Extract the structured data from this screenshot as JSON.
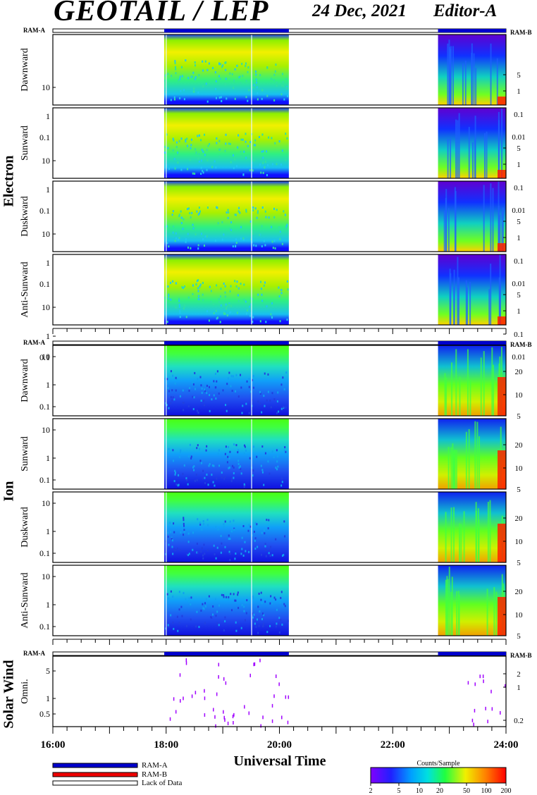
{
  "header": {
    "title": "GEOTAIL / LEP",
    "date": "24 Dec, 2021",
    "editor": "Editor-A"
  },
  "groups": [
    {
      "name": "Electron",
      "panels": [
        {
          "label": "Dawnward"
        },
        {
          "label": "Sunward"
        },
        {
          "label": "Duskward"
        },
        {
          "label": "Anti-Sunward"
        }
      ],
      "left_ticks": [
        "10",
        "1",
        "0.1"
      ],
      "right_ticks": [
        "5",
        "1",
        "0.1",
        "0.01"
      ]
    },
    {
      "name": "Ion",
      "panels": [
        {
          "label": "Dawnward"
        },
        {
          "label": "Sunward"
        },
        {
          "label": "Duskward"
        },
        {
          "label": "Anti-Sunward"
        }
      ],
      "left_ticks": [
        "10",
        "1",
        "0.1"
      ],
      "right_ticks": [
        "20",
        "10",
        "5"
      ]
    },
    {
      "name": "Solar Wind",
      "panels": [
        {
          "label": "Omni."
        }
      ],
      "left_ticks": [
        "5",
        "1",
        "0.5"
      ],
      "right_ticks": [
        "2",
        "1",
        "0.2"
      ]
    }
  ],
  "ram_labels": {
    "left": "RAM-A",
    "right": "RAM-B"
  },
  "x_axis": {
    "label": "Universal Time",
    "ticks": [
      "16:00",
      "18:00",
      "20:00",
      "22:00",
      "24:00"
    ]
  },
  "legend": {
    "items": [
      {
        "label": "RAM-A",
        "color": "#0000cc"
      },
      {
        "label": "RAM-B",
        "color": "#ee0000"
      },
      {
        "label": "Lack of Data",
        "color": "#ffffff"
      }
    ]
  },
  "colorbar": {
    "title": "Counts/Sample",
    "ticks": [
      "2",
      "5",
      "10",
      "20",
      "50",
      "100",
      "200"
    ]
  },
  "chart_data": {
    "type": "heatmap",
    "title": "GEOTAIL / LEP",
    "xlabel": "Universal Time",
    "x_range": [
      "16:00",
      "24:00"
    ],
    "data_intervals": [
      [
        "17:58",
        "20:10"
      ],
      [
        "22:48",
        "24:00"
      ]
    ],
    "ram_a_intervals": [
      [
        "17:58",
        "20:10"
      ],
      [
        "22:48",
        "24:00"
      ]
    ],
    "colorscale": {
      "label": "Counts/Sample",
      "min": 2,
      "max": 200,
      "scale": "log"
    },
    "series": [
      {
        "name": "Electron Dawnward"
      },
      {
        "name": "Electron Sunward"
      },
      {
        "name": "Electron Duskward"
      },
      {
        "name": "Electron Anti-Sunward"
      },
      {
        "name": "Ion Dawnward"
      },
      {
        "name": "Ion Sunward"
      },
      {
        "name": "Ion Duskward"
      },
      {
        "name": "Ion Anti-Sunward"
      },
      {
        "name": "Solar Wind Omni."
      }
    ]
  }
}
